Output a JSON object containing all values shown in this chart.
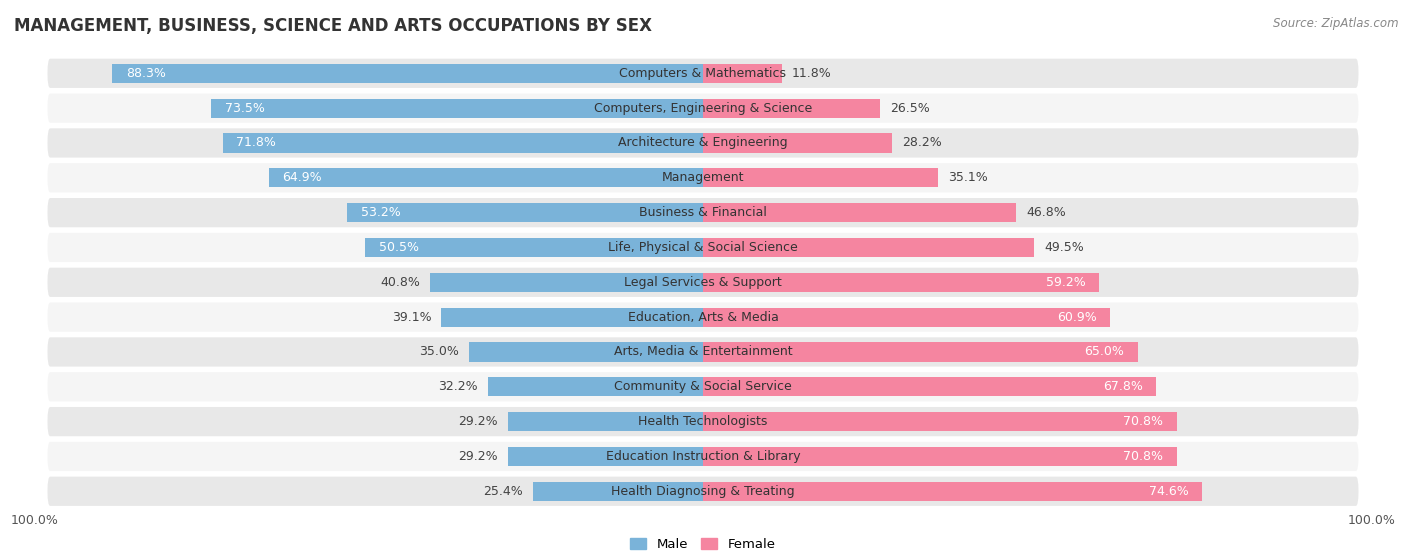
{
  "title": "MANAGEMENT, BUSINESS, SCIENCE AND ARTS OCCUPATIONS BY SEX",
  "source": "Source: ZipAtlas.com",
  "categories": [
    "Computers & Mathematics",
    "Computers, Engineering & Science",
    "Architecture & Engineering",
    "Management",
    "Business & Financial",
    "Life, Physical & Social Science",
    "Legal Services & Support",
    "Education, Arts & Media",
    "Arts, Media & Entertainment",
    "Community & Social Service",
    "Health Technologists",
    "Education Instruction & Library",
    "Health Diagnosing & Treating"
  ],
  "male": [
    88.3,
    73.5,
    71.8,
    64.9,
    53.2,
    50.5,
    40.8,
    39.1,
    35.0,
    32.2,
    29.2,
    29.2,
    25.4
  ],
  "female": [
    11.8,
    26.5,
    28.2,
    35.1,
    46.8,
    49.5,
    59.2,
    60.9,
    65.0,
    67.8,
    70.8,
    70.8,
    74.6
  ],
  "male_color": "#7ab3d9",
  "female_color": "#f585a0",
  "row_bg_odd": "#e8e8e8",
  "row_bg_even": "#f5f5f5",
  "bar_height": 0.55,
  "legend_male": "Male",
  "legend_female": "Female",
  "title_fontsize": 12,
  "label_fontsize": 9,
  "source_fontsize": 8.5,
  "axis_range": 100
}
